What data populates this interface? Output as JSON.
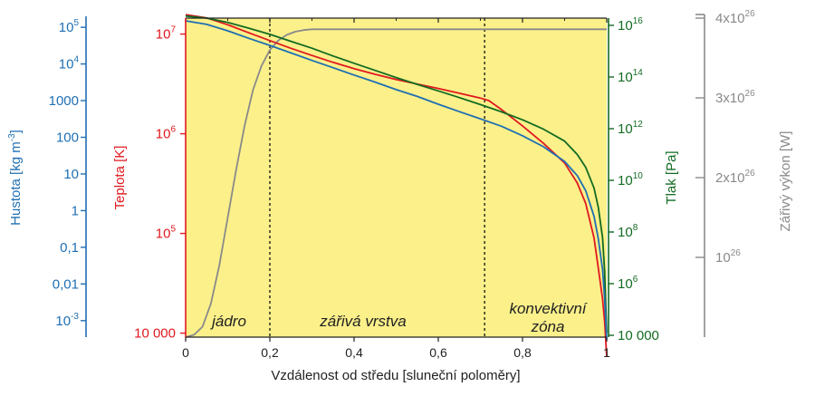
{
  "chart_data": {
    "type": "line",
    "xlabel": "Vzdálenost od středu [sluneční poloměry]",
    "x_ticks": [
      "0",
      "0,2",
      "0,4",
      "0,6",
      "0,8",
      "1"
    ],
    "xlim": [
      0,
      1
    ],
    "zones": [
      {
        "label": "jádro",
        "boundary": 0.2
      },
      {
        "label": "zářivá vrstva",
        "boundary": 0.71
      },
      {
        "label_line1": "konvektivní",
        "label_line2": "zóna"
      }
    ],
    "axes": {
      "density": {
        "label": "Hustota",
        "unit_prefix": "[kg m",
        "unit_sup": "-3",
        "unit_suffix": "]",
        "color": "#1f6fb3",
        "scale": "log",
        "ticks": [
          {
            "base": "10",
            "sup": "5",
            "value": 100000
          },
          {
            "base": "10",
            "sup": "4",
            "value": 10000
          },
          {
            "base": "1000",
            "sup": "",
            "value": 1000
          },
          {
            "base": "100",
            "sup": "",
            "value": 100
          },
          {
            "base": "10",
            "sup": "",
            "value": 10
          },
          {
            "base": "1",
            "sup": "",
            "value": 1
          },
          {
            "base": "0,1",
            "sup": "",
            "value": 0.1
          },
          {
            "base": "0,01",
            "sup": "",
            "value": 0.01
          },
          {
            "base": "10",
            "sup": "-3",
            "value": 0.001
          }
        ]
      },
      "temperature": {
        "label": "Teplota [K]",
        "color": "#e0191f",
        "scale": "log",
        "ticks": [
          {
            "base": "10",
            "sup": "7",
            "value": 10000000
          },
          {
            "base": "10",
            "sup": "6",
            "value": 1000000
          },
          {
            "base": "10",
            "sup": "5",
            "value": 100000
          },
          {
            "base": "10 000",
            "sup": "",
            "value": 10000
          }
        ]
      },
      "pressure": {
        "label": "Tlak [Pa]",
        "color": "#136b22",
        "scale": "log",
        "ticks": [
          {
            "base": "10",
            "sup": "16",
            "value": 1e+16
          },
          {
            "base": "10",
            "sup": "14",
            "value": 100000000000000.0
          },
          {
            "base": "10",
            "sup": "12",
            "value": 1000000000000.0
          },
          {
            "base": "10",
            "sup": "10",
            "value": 10000000000.0
          },
          {
            "base": "10",
            "sup": "8",
            "value": 100000000.0
          },
          {
            "base": "10",
            "sup": "6",
            "value": 1000000.0
          },
          {
            "base": "10 000",
            "sup": "",
            "value": 10000
          }
        ]
      },
      "luminosity": {
        "label": "Zářivý výkon [W]",
        "color": "#8a8a8a",
        "scale": "linear",
        "ticks": [
          {
            "base": "4x10",
            "sup": "26",
            "value": 4e+26
          },
          {
            "base": "3x10",
            "sup": "26",
            "value": 3e+26
          },
          {
            "base": "2x10",
            "sup": "26",
            "value": 2e+26
          },
          {
            "base": "10",
            "sup": "26",
            "value": 1e+26
          }
        ]
      }
    },
    "series": [
      {
        "axis": "temperature",
        "color": "#e0191f",
        "x": [
          0,
          0.05,
          0.1,
          0.15,
          0.2,
          0.25,
          0.3,
          0.35,
          0.4,
          0.45,
          0.5,
          0.55,
          0.6,
          0.65,
          0.7,
          0.72,
          0.75,
          0.8,
          0.85,
          0.9,
          0.93,
          0.95,
          0.97,
          0.98,
          0.99,
          0.995,
          1.0
        ],
        "values": [
          15700000,
          14500000,
          12400000,
          10300000,
          8600000,
          7200000,
          6100000,
          5200000,
          4500000,
          3950000,
          3500000,
          3150000,
          2850000,
          2550000,
          2280000,
          2150000,
          1750000,
          1200000,
          800000,
          510000,
          320000,
          200000,
          90000,
          45000,
          22000,
          13000,
          5800
        ]
      },
      {
        "axis": "density",
        "color": "#1f6fb3",
        "x": [
          0,
          0.05,
          0.1,
          0.15,
          0.2,
          0.25,
          0.3,
          0.35,
          0.4,
          0.45,
          0.5,
          0.55,
          0.6,
          0.65,
          0.7,
          0.75,
          0.8,
          0.85,
          0.9,
          0.93,
          0.95,
          0.97,
          0.98,
          0.99,
          0.995,
          1.0
        ],
        "values": [
          150000,
          120000,
          80000,
          50000,
          32000,
          20000,
          12500,
          7900,
          5000,
          3200,
          2000,
          1300,
          800,
          500,
          320,
          200,
          110,
          55,
          22,
          9,
          3.5,
          0.7,
          0.17,
          0.025,
          0.004,
          0.0003
        ]
      },
      {
        "axis": "pressure",
        "color": "#136b22",
        "x": [
          0,
          0.05,
          0.1,
          0.15,
          0.2,
          0.25,
          0.3,
          0.35,
          0.4,
          0.45,
          0.5,
          0.55,
          0.6,
          0.65,
          0.7,
          0.75,
          0.8,
          0.85,
          0.9,
          0.93,
          0.95,
          0.97,
          0.98,
          0.99,
          0.995,
          1.0
        ],
        "values": [
          2.3e+16,
          1.9e+16,
          1.3e+16,
          7800000000000000.0,
          4500000000000000.0,
          2400000000000000.0,
          1300000000000000.0,
          650000000000000.0,
          340000000000000.0,
          180000000000000.0,
          95000000000000.0,
          52000000000000.0,
          29000000000000.0,
          16000000000000.0,
          8600000000000.0,
          4500000000000.0,
          2200000000000.0,
          950000000000.0,
          330000000000.0,
          100000000000.0,
          32000000000.0,
          5000000000.0,
          900000000.0,
          60000000.0,
          3000000.0,
          12000
        ]
      },
      {
        "axis": "luminosity",
        "color": "#8a8a8a",
        "x": [
          0,
          0.02,
          0.04,
          0.06,
          0.08,
          0.1,
          0.12,
          0.14,
          0.16,
          0.18,
          0.2,
          0.22,
          0.24,
          0.26,
          0.28,
          0.3,
          0.33,
          0.36,
          1.0
        ],
        "values": [
          0,
          3e+24,
          1.3e+25,
          4.2e+25,
          9e+25,
          1.5e+26,
          2.1e+26,
          2.65e+26,
          3.1e+26,
          3.4e+26,
          3.6e+26,
          3.72e+26,
          3.79e+26,
          3.83e+26,
          3.85e+26,
          3.86e+26,
          3.86e+26,
          3.86e+26,
          3.86e+26
        ]
      }
    ],
    "plot_background": "#fbf08a"
  }
}
